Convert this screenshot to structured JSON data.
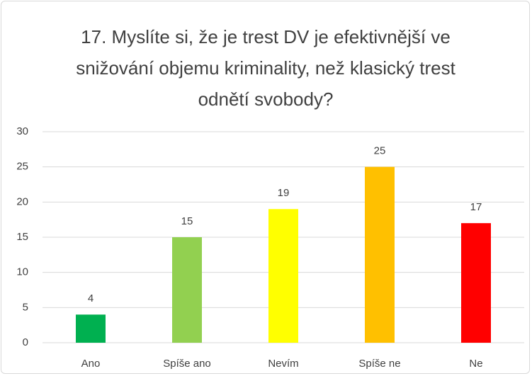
{
  "chart_data": {
    "type": "bar",
    "title": "17. Myslíte si, že je trest DV je efektivnější ve snižování objemu kriminality, než klasický trest odnětí svobody?",
    "categories": [
      "Ano",
      "Spíše ano",
      "Nevím",
      "Spíše ne",
      "Ne"
    ],
    "values": [
      4,
      15,
      19,
      25,
      17
    ],
    "colors": [
      "#00b050",
      "#92d050",
      "#ffff00",
      "#ffc000",
      "#ff0000"
    ],
    "ylim": [
      0,
      30
    ],
    "yticks": [
      0,
      5,
      10,
      15,
      20,
      25,
      30
    ],
    "grid": true
  }
}
